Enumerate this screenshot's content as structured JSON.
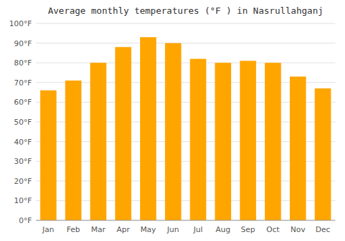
{
  "chart_data": {
    "type": "bar",
    "title": "Average monthly temperatures (°F ) in Nasrullahganj",
    "categories": [
      "Jan",
      "Feb",
      "Mar",
      "Apr",
      "May",
      "Jun",
      "Jul",
      "Aug",
      "Sep",
      "Oct",
      "Nov",
      "Dec"
    ],
    "values": [
      66,
      71,
      80,
      88,
      93,
      90,
      82,
      80,
      81,
      80,
      73,
      67
    ],
    "color": "#FFA500",
    "ylim": [
      0,
      100
    ],
    "yticks": [
      {
        "value": 0,
        "label": "0°F"
      },
      {
        "value": 10,
        "label": "10°F"
      },
      {
        "value": 20,
        "label": "20°F"
      },
      {
        "value": 30,
        "label": "30°F"
      },
      {
        "value": 40,
        "label": "40°F"
      },
      {
        "value": 50,
        "label": "50°F"
      },
      {
        "value": 60,
        "label": "60°F"
      },
      {
        "value": 70,
        "label": "70°F"
      },
      {
        "value": 80,
        "label": "80°F"
      },
      {
        "value": 90,
        "label": "90°F"
      },
      {
        "value": 100,
        "label": "100°F"
      }
    ],
    "grid": true
  }
}
